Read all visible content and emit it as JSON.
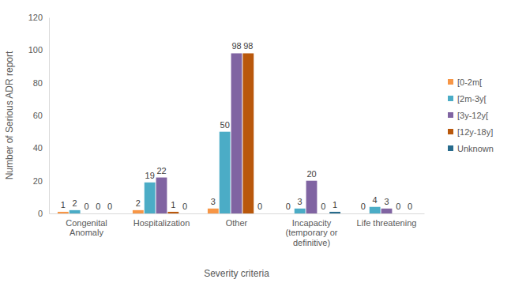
{
  "chart_data": {
    "type": "bar",
    "x_label": "Severity criteria",
    "y_label": "Number of Serious ADR report",
    "categories": [
      "Congenital Anomaly",
      "Hospitalization",
      "Other",
      "Incapacity (temporary or definitive)",
      "Life threatening"
    ],
    "series": [
      {
        "name": "[0-2m[",
        "color": "#f79646",
        "values": [
          1,
          2,
          3,
          0,
          0
        ]
      },
      {
        "name": "[2m-3y[",
        "color": "#4bacc6",
        "values": [
          2,
          19,
          50,
          3,
          4
        ]
      },
      {
        "name": "[3y-12y[",
        "color": "#8064a2",
        "values": [
          0,
          22,
          98,
          20,
          3
        ]
      },
      {
        "name": "[12y-18y]",
        "color": "#b9580c",
        "values": [
          0,
          1,
          98,
          0,
          0
        ]
      },
      {
        "name": "Unknown",
        "color": "#276b8c",
        "values": [
          0,
          0,
          0,
          1,
          0
        ]
      }
    ],
    "ylim": [
      0,
      120
    ],
    "yticks": [
      0,
      20,
      40,
      60,
      80,
      100,
      120
    ],
    "grid": false,
    "legend": "right",
    "data_labels": true
  }
}
